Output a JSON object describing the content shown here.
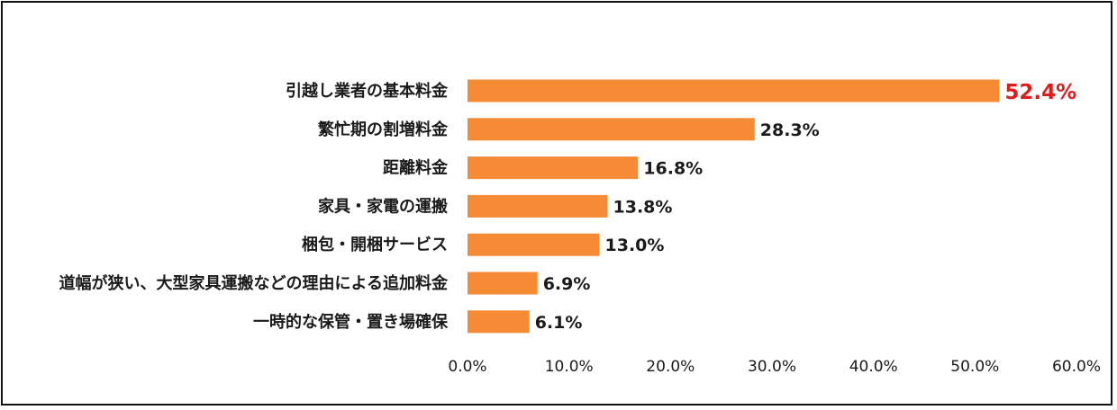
{
  "chart_data": {
    "type": "bar",
    "orientation": "horizontal",
    "categories": [
      "引越し業者の基本料金",
      "繁忙期の割増料金",
      "距離料金",
      "家具・家電の運搬",
      "梱包・開梱サービス",
      "道幅が狭い、大型家具運搬などの理由による追加料金",
      "一時的な保管・置き場確保"
    ],
    "values": [
      52.4,
      28.3,
      16.8,
      13.8,
      13.0,
      6.9,
      6.1
    ],
    "value_labels": [
      "52.4%",
      "28.3%",
      "16.8%",
      "13.8%",
      "13.0%",
      "6.9%",
      "6.1%"
    ],
    "highlight_index": 0,
    "xlim": [
      0,
      60
    ],
    "x_ticks": [
      0,
      10,
      20,
      30,
      40,
      50,
      60
    ],
    "x_tick_labels": [
      "0.0%",
      "10.0%",
      "20.0%",
      "30.0%",
      "40.0%",
      "50.0%",
      "60.0%"
    ],
    "title": "",
    "xlabel": "",
    "ylabel": "",
    "grid": false,
    "legend": "none",
    "colors": {
      "bar": "#F58B35",
      "highlight_label": "#E01B1B",
      "text": "#1a1a1a"
    }
  }
}
